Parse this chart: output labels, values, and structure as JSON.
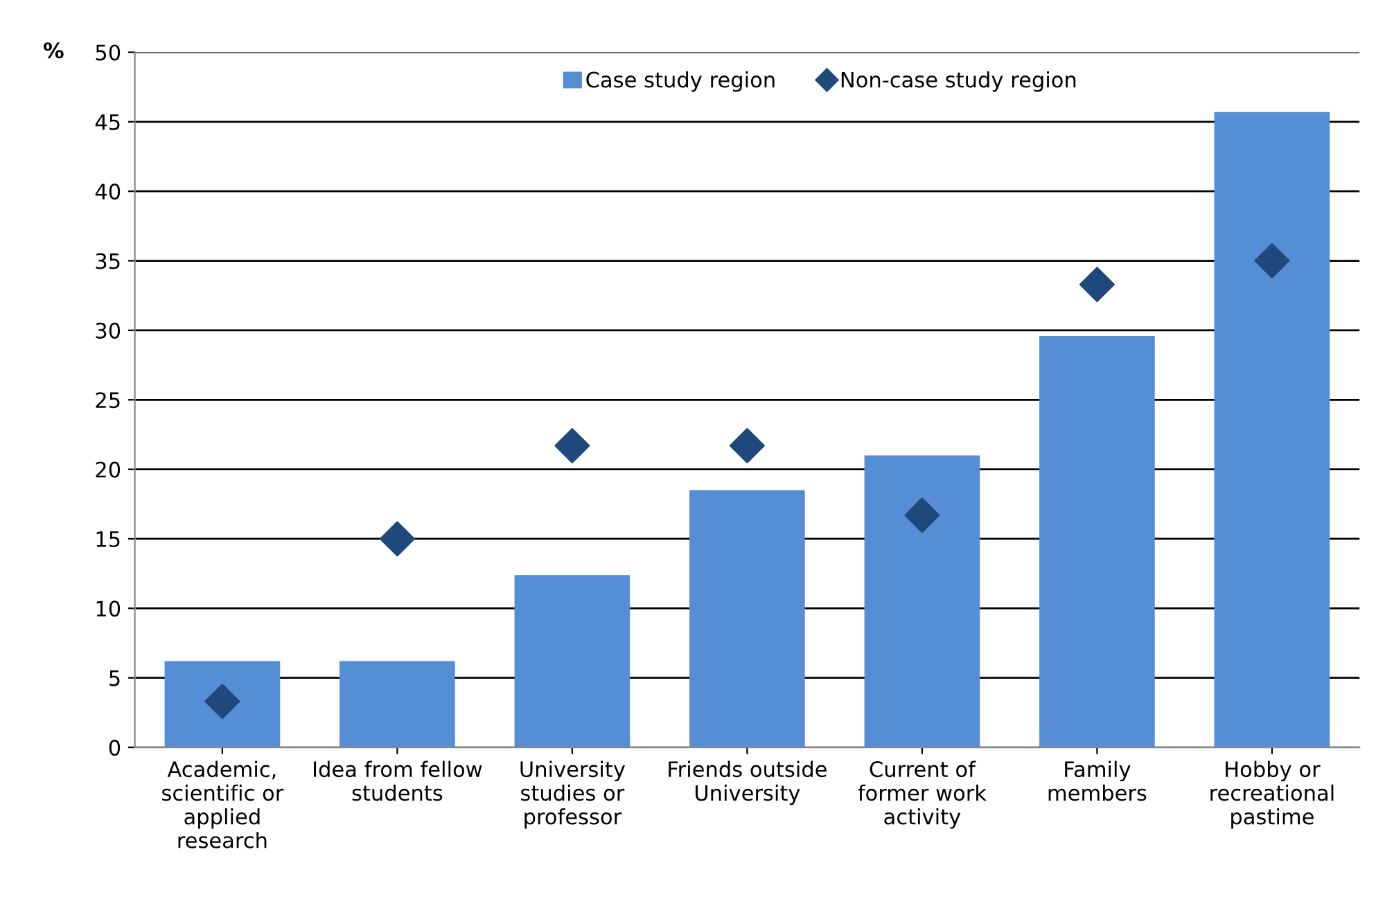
{
  "chart_data": {
    "type": "bar",
    "ylabel": "%",
    "categories": [
      "Academic,\nscientific or\napplied\nresearch",
      "Idea from fellow\nstudents",
      "University\nstudies or\nprofessor",
      "Friends outside\nUniversity",
      "Current of\nformer work\nactivity",
      "Family\nmembers",
      "Hobby or\nrecreational\npastime"
    ],
    "series": [
      {
        "name": "Case study region",
        "color": "#558ed5",
        "values": [
          6.2,
          6.2,
          12.4,
          18.5,
          21.0,
          29.6,
          45.7
        ]
      },
      {
        "name": "Non-case study region",
        "type": "scatter",
        "color": "#1f497d",
        "marker": "diamond",
        "values": [
          3.3,
          15.0,
          21.7,
          21.7,
          16.7,
          33.3,
          35.0
        ]
      }
    ],
    "ylim": [
      0,
      50
    ],
    "yticks": [
      0,
      5,
      10,
      15,
      20,
      25,
      30,
      35,
      40,
      45,
      50
    ],
    "grid": "y",
    "legend": "top"
  }
}
